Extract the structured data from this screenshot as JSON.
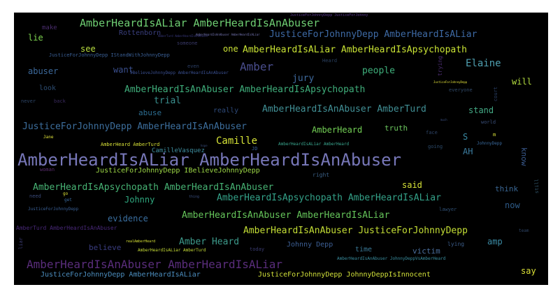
{
  "words": [
    {
      "text": "AmberHeardIsALiar AmberHeardIsAnAbuser",
      "color": "#7777b8"
    },
    {
      "text": "AmberHeardIsAnAbuser AmberHeardIsALiar",
      "color": "#5a2d7c"
    },
    {
      "text": "AmberHeardIsALiar AmberHeardIsAnAbuser",
      "color": "#6fcf73"
    },
    {
      "text": "AmberHeardIsALiar AmberHeardIsApsychopath",
      "color": "#c9e334"
    },
    {
      "text": "JusticeForJohnnyDepp AmberHeardIsALiar",
      "color": "#3e6aa5"
    },
    {
      "text": "AmberHeardIsAnAbuser AmberHeardIsApsychopath",
      "color": "#3fae7b"
    },
    {
      "text": "AmberHeardIsAnAbuser AmberTurd",
      "color": "#418f95"
    },
    {
      "text": "JusticeForJohnnyDepp AmberHeardIsAnAbuser",
      "color": "#3d6f9e"
    },
    {
      "text": "AmberHeardIsApsychopath AmberHeardIsAnAbuser",
      "color": "#47b374"
    },
    {
      "text": "AmberHeardIsApsychopath AmberHeardIsALiar",
      "color": "#34a289"
    },
    {
      "text": "AmberHeardIsAnAbuser AmberHeardIsALiar",
      "color": "#65c45a"
    },
    {
      "text": "AmberHeardIsAnAbuser JusticeForJohnnyDepp",
      "color": "#c5df35"
    },
    {
      "text": "JusticeForJohnnyDepp IBelieveJohnnyDepp",
      "color": "#9ed946"
    },
    {
      "text": "JusticeForJohnnyDepp AmberHeardIsALiar",
      "color": "#4c8ebf"
    },
    {
      "text": "JusticeForJohnnyDepp JohnnyDeppIsInnocent",
      "color": "#d1e03a"
    },
    {
      "text": "Amber",
      "color": "#4a4e8e"
    },
    {
      "text": "Elaine",
      "color": "#4fa0b1"
    },
    {
      "text": "Camille",
      "color": "#d7e437"
    },
    {
      "text": "AmberHeard",
      "color": "#73d055"
    },
    {
      "text": "Amber Heard",
      "color": "#3d9a8b"
    },
    {
      "text": "Johnny",
      "color": "#2fa87f"
    },
    {
      "text": "trial",
      "color": "#3a8f8e"
    },
    {
      "text": "evidence",
      "color": "#3a6fa0"
    },
    {
      "text": "people",
      "color": "#3fb07c"
    },
    {
      "text": "jury",
      "color": "#3f6b9f"
    },
    {
      "text": "abuser",
      "color": "#3c699b"
    },
    {
      "text": "see",
      "color": "#b8dd3f"
    },
    {
      "text": "will",
      "color": "#b2dc3e"
    },
    {
      "text": "said",
      "color": "#d7e338"
    },
    {
      "text": "say",
      "color": "#dce237"
    },
    {
      "text": "stand",
      "color": "#44aa85"
    },
    {
      "text": "truth",
      "color": "#6cc75e"
    },
    {
      "text": "want",
      "color": "#3a4f8d"
    },
    {
      "text": "one",
      "color": "#c9e036"
    },
    {
      "text": "lie",
      "color": "#7dd34f"
    },
    {
      "text": "AH",
      "color": "#3c7da0"
    },
    {
      "text": "S",
      "color": "#3a8ba4"
    },
    {
      "text": "abuse",
      "color": "#2c6c8f"
    },
    {
      "text": "now",
      "color": "#2e5b88"
    },
    {
      "text": "think",
      "color": "#3a6794"
    },
    {
      "text": "know",
      "color": "#3a5a8e"
    },
    {
      "text": "Rottenborn",
      "color": "#3a3f7e"
    },
    {
      "text": "CamilleVasquez",
      "color": "#3f8fa0"
    },
    {
      "text": "Johnny Depp",
      "color": "#3d5f95"
    },
    {
      "text": "believe",
      "color": "#3a3d80"
    },
    {
      "text": "time",
      "color": "#3a7a98"
    },
    {
      "text": "victim",
      "color": "#4b6f9e"
    },
    {
      "text": "amp",
      "color": "#3b8ba5"
    },
    {
      "text": "really",
      "color": "#2e4a7a"
    },
    {
      "text": "look",
      "color": "#2d4d73"
    },
    {
      "text": "make",
      "color": "#4a2d6e"
    },
    {
      "text": "never",
      "color": "#2d4566"
    },
    {
      "text": "back",
      "color": "#3a2a5e"
    },
    {
      "text": "right",
      "color": "#3a5f85"
    },
    {
      "text": "lying",
      "color": "#3a5a86"
    },
    {
      "text": "lawyer",
      "color": "#2f4f73"
    },
    {
      "text": "face",
      "color": "#2e4466"
    },
    {
      "text": "going",
      "color": "#2c4a6a"
    },
    {
      "text": "even",
      "color": "#2c3f66"
    },
    {
      "text": "someone",
      "color": "#3a3a6a"
    },
    {
      "text": "Heard",
      "color": "#2a4060"
    },
    {
      "text": "court",
      "color": "#2a3f66"
    },
    {
      "text": "trying",
      "color": "#4a2d70"
    },
    {
      "text": "everyone",
      "color": "#2f4766"
    },
    {
      "text": "world",
      "color": "#3a4f7a"
    },
    {
      "text": "still",
      "color": "#2f5266"
    },
    {
      "text": "today",
      "color": "#3a3b70"
    },
    {
      "text": "team",
      "color": "#2e4466"
    },
    {
      "text": "woman",
      "color": "#5a2d6e"
    },
    {
      "text": "need",
      "color": "#3a4a7a"
    },
    {
      "text": "liar",
      "color": "#3a3a70"
    },
    {
      "text": "AmberTurd AmberHeardIsAnAbuser",
      "color": "#482878"
    },
    {
      "text": "AmberHeard AmberTurd",
      "color": "#d7e137"
    },
    {
      "text": "JusticeForJohnnyDepp IStandWithJohnnyDepp",
      "color": "#3a5f95"
    },
    {
      "text": "IBelieveJohnnyDepp AmberHeardIsAnAbuser",
      "color": "#3a4f90"
    },
    {
      "text": "AmberHeardIsALiar AmberHeard",
      "color": "#3aa890"
    },
    {
      "text": "AmberHeardIsAnAbuser JohnnyDeppVsAmberHeard",
      "color": "#3a8fa0"
    },
    {
      "text": "AmberHeardIsALiar AmberTurd",
      "color": "#c8de36"
    },
    {
      "text": "JusticeForJohnnyDepp",
      "color": "#3a5f95"
    },
    {
      "text": "JusticeForJohnnyDepp JusticeForJohnny",
      "color": "#5a3a8e"
    },
    {
      "text": "AmberTurd AmberHeardIsAnAbuser",
      "color": "#3a3a80"
    },
    {
      "text": "JohnnyDepp",
      "color": "#3a6a9e"
    },
    {
      "text": "JusticeForJohnnyDepp",
      "color": "#e5e33a"
    },
    {
      "text": "Jane",
      "color": "#e0e23a"
    },
    {
      "text": "JD",
      "color": "#3a5f95"
    },
    {
      "text": "m",
      "color": "#d9e038"
    },
    {
      "text": "hope",
      "color": "#3a4f80"
    },
    {
      "text": "much",
      "color": "#3a4f80"
    },
    {
      "text": "go",
      "color": "#dde137"
    },
    {
      "text": "realAmberHeard",
      "color": "#d8e236"
    },
    {
      "text": "thing",
      "color": "#3a4f80"
    },
    {
      "text": "get",
      "color": "#3a6a9e"
    },
    {
      "text": "AmberHeardIsAnAbuser AmberHeardIsALiar",
      "color": "#7a7aba"
    }
  ]
}
